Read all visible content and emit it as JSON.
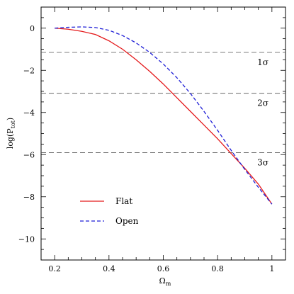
{
  "chart_data": {
    "type": "line",
    "title": "",
    "xlabel": "Ω",
    "xlabel_sub": "m",
    "ylabel": "log(P",
    "ylabel_sub": "tot",
    "ylabel_close": ")",
    "xlim": [
      0.15,
      1.05
    ],
    "ylim": [
      -11,
      1
    ],
    "x_ticks": [
      0.2,
      0.4,
      0.6,
      0.8,
      1
    ],
    "x_tick_labels": [
      "0.2",
      "0.4",
      "0.6",
      "0.8",
      "1"
    ],
    "y_ticks": [
      0,
      -2,
      -4,
      -6,
      -8,
      -10
    ],
    "y_tick_labels": [
      "0",
      "−2",
      "−4",
      "−6",
      "−8",
      "−10"
    ],
    "grid": false,
    "legend_position": "bottom-left",
    "series": [
      {
        "name": "Flat",
        "color": "#e41a1c",
        "dash": "solid",
        "x": [
          0.2,
          0.25,
          0.3,
          0.35,
          0.4,
          0.45,
          0.5,
          0.55,
          0.6,
          0.65,
          0.7,
          0.75,
          0.8,
          0.85,
          0.9,
          0.95,
          1.0
        ],
        "y": [
          0.0,
          -0.05,
          -0.15,
          -0.3,
          -0.6,
          -1.0,
          -1.5,
          -2.05,
          -2.65,
          -3.3,
          -3.95,
          -4.6,
          -5.25,
          -5.95,
          -6.65,
          -7.4,
          -8.35
        ]
      },
      {
        "name": "Open",
        "color": "#1f1fd6",
        "dash": "dashed",
        "x": [
          0.2,
          0.25,
          0.3,
          0.35,
          0.4,
          0.45,
          0.5,
          0.55,
          0.6,
          0.65,
          0.7,
          0.75,
          0.8,
          0.85,
          0.9,
          0.95,
          1.0
        ],
        "y": [
          0.0,
          0.04,
          0.06,
          0.03,
          -0.1,
          -0.35,
          -0.7,
          -1.15,
          -1.7,
          -2.35,
          -3.1,
          -3.95,
          -4.85,
          -5.8,
          -6.7,
          -7.55,
          -8.35
        ]
      }
    ],
    "reference_lines": [
      {
        "y": -1.15,
        "label": "1σ"
      },
      {
        "y": -3.09,
        "label": "2σ"
      },
      {
        "y": -5.91,
        "label": "3σ"
      }
    ]
  }
}
